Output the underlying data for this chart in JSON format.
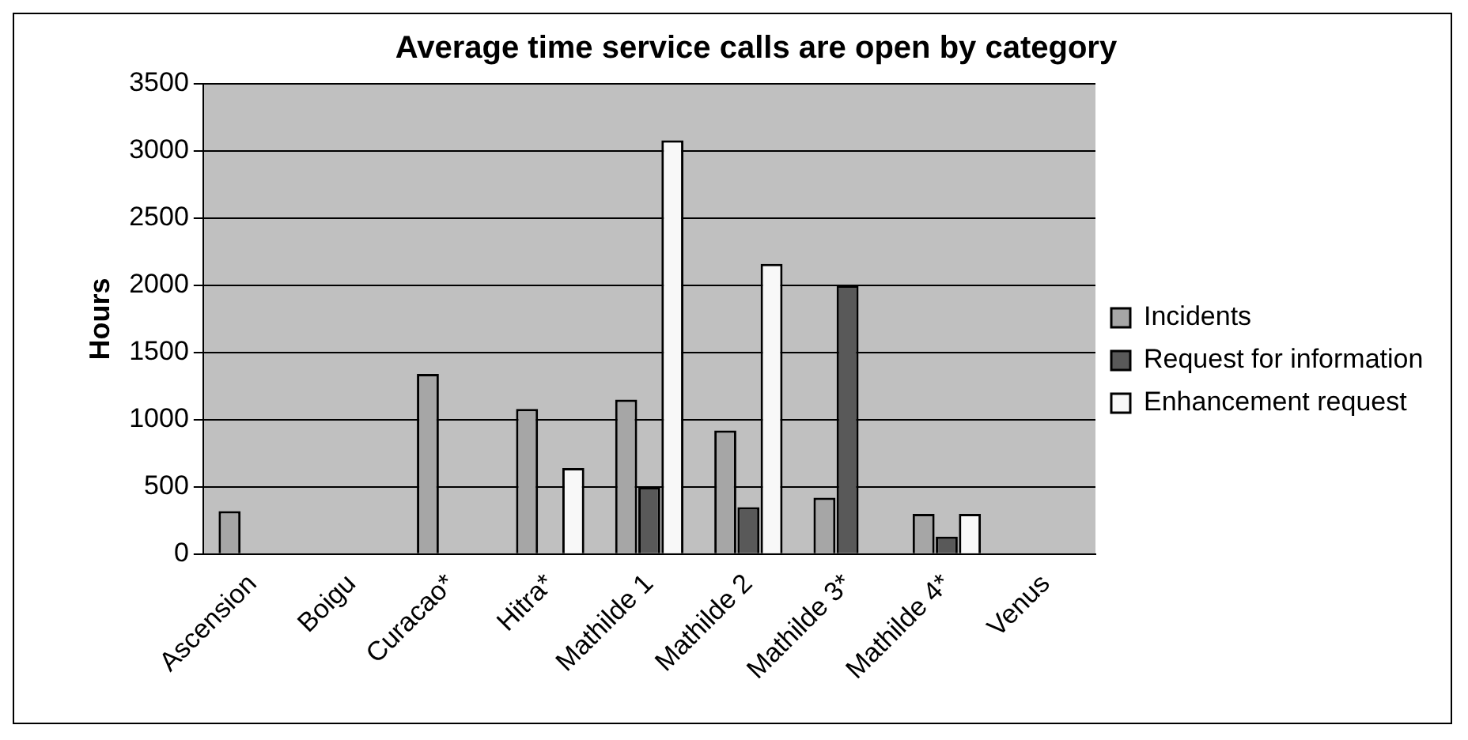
{
  "chart_data": {
    "type": "bar",
    "title": "Average time service calls are open by category",
    "ylabel": "Hours",
    "categories": [
      "Ascension",
      "Boigu",
      "Curacao*",
      "Hitra*",
      "Mathilde 1",
      "Mathilde 2",
      "Mathilde 3*",
      "Mathilde 4*",
      "Venus"
    ],
    "series": [
      {
        "name": "Incidents",
        "color": "#a6a6a6",
        "values": [
          320,
          null,
          1340,
          1080,
          1150,
          920,
          420,
          300,
          null
        ]
      },
      {
        "name": "Request for information",
        "color": "#595959",
        "values": [
          null,
          null,
          null,
          null,
          500,
          350,
          2000,
          130,
          null
        ]
      },
      {
        "name": "Enhancement request",
        "color": "#f8f8f8",
        "values": [
          null,
          null,
          null,
          640,
          3080,
          2160,
          null,
          300,
          null
        ]
      }
    ],
    "ylim": [
      0,
      3500
    ],
    "yticks": [
      0,
      500,
      1000,
      1500,
      2000,
      2500,
      3000,
      3500
    ],
    "grid": "y",
    "legend": "right"
  }
}
